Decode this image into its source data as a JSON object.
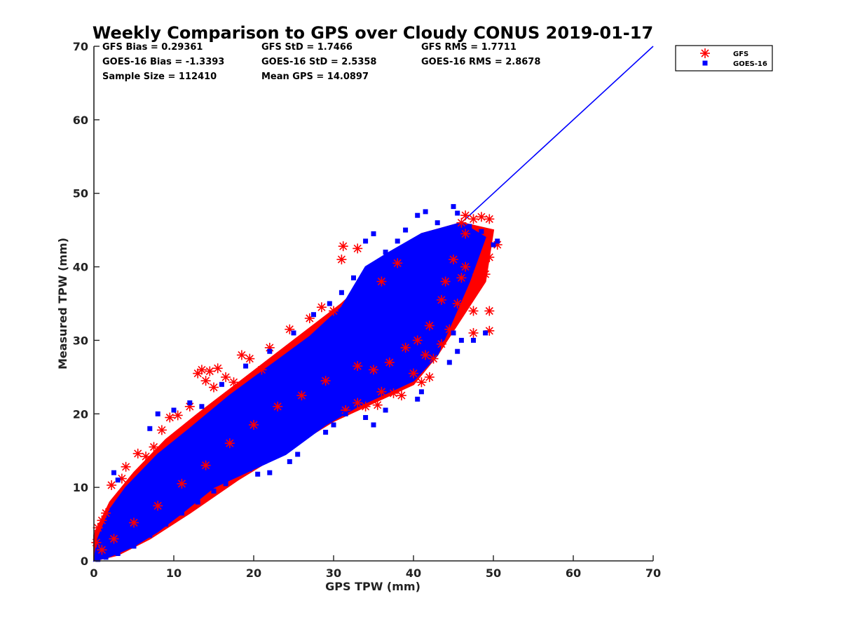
{
  "chart_data": {
    "type": "scatter",
    "title": "Weekly Comparison to GPS over Cloudy CONUS 2019-01-17",
    "xlabel": "GPS TPW (mm)",
    "ylabel": "Measured TPW (mm)",
    "xlim": [
      0,
      70
    ],
    "ylim": [
      0,
      70
    ],
    "xticks": [
      0,
      10,
      20,
      30,
      40,
      50,
      60,
      70
    ],
    "yticks": [
      0,
      10,
      20,
      30,
      40,
      50,
      60,
      70
    ],
    "grid": false,
    "legend_position": "outside top-right",
    "stats": {
      "gfs_bias": "GFS Bias = 0.29361",
      "goes_bias": "GOES-16 Bias = -1.3393",
      "sample_size": "Sample Size = 112410",
      "gfs_std": "GFS StD = 1.7466",
      "goes_std": "GOES-16 StD = 2.5358",
      "mean_gps": "Mean GPS = 14.0897",
      "gfs_rms": "GFS RMS = 1.7711",
      "goes_rms": "GOES-16 RMS = 2.8678"
    },
    "reference_line": {
      "name": "1:1 line",
      "color": "#0000ff",
      "x": [
        0,
        70
      ],
      "y": [
        0,
        70
      ]
    },
    "series": [
      {
        "name": "GFS",
        "marker": "asterisk",
        "color": "#ff0000",
        "points": [
          [
            0.3,
            2.5
          ],
          [
            0.5,
            4.5
          ],
          [
            1.0,
            5.5
          ],
          [
            1.5,
            6.5
          ],
          [
            2.2,
            10.3
          ],
          [
            3.5,
            11.2
          ],
          [
            4.0,
            12.8
          ],
          [
            5.5,
            14.6
          ],
          [
            6.5,
            14.2
          ],
          [
            7.5,
            15.5
          ],
          [
            8.5,
            17.8
          ],
          [
            9.5,
            19.5
          ],
          [
            10.5,
            19.8
          ],
          [
            12.0,
            21.0
          ],
          [
            13.0,
            25.5
          ],
          [
            13.5,
            26.0
          ],
          [
            14.0,
            24.5
          ],
          [
            14.5,
            25.8
          ],
          [
            15.0,
            23.6
          ],
          [
            15.5,
            26.2
          ],
          [
            16.5,
            25.0
          ],
          [
            17.5,
            24.3
          ],
          [
            18.5,
            28.0
          ],
          [
            19.5,
            27.5
          ],
          [
            21.0,
            26.0
          ],
          [
            22.0,
            29.0
          ],
          [
            24.5,
            31.5
          ],
          [
            27.0,
            33.0
          ],
          [
            28.5,
            34.5
          ],
          [
            30.0,
            34.0
          ],
          [
            31.2,
            42.8
          ],
          [
            31.0,
            41.0
          ],
          [
            33.0,
            42.5
          ],
          [
            36.0,
            38.0
          ],
          [
            38.0,
            40.5
          ],
          [
            41.5,
            28.0
          ],
          [
            42.0,
            25.0
          ],
          [
            41.0,
            24.3
          ],
          [
            38.5,
            22.5
          ],
          [
            36.0,
            23.0
          ],
          [
            34.0,
            21.0
          ],
          [
            31.5,
            20.5
          ],
          [
            33.0,
            21.5
          ],
          [
            35.5,
            21.2
          ],
          [
            37.5,
            22.8
          ],
          [
            40.0,
            25.5
          ],
          [
            42.5,
            27.5
          ],
          [
            43.5,
            29.5
          ],
          [
            44.5,
            31.5
          ],
          [
            45.5,
            35.0
          ],
          [
            46.0,
            38.5
          ],
          [
            46.5,
            40.0
          ],
          [
            47.5,
            37.0
          ],
          [
            48.0,
            39.0
          ],
          [
            49.0,
            39.0
          ],
          [
            47.5,
            34.0
          ],
          [
            49.5,
            34.0
          ],
          [
            47.5,
            31.0
          ],
          [
            49.5,
            31.3
          ],
          [
            49.5,
            41.3
          ],
          [
            50.5,
            43.0
          ],
          [
            46.0,
            46.0
          ],
          [
            46.5,
            47.0
          ],
          [
            47.5,
            46.5
          ],
          [
            48.5,
            46.8
          ],
          [
            49.5,
            46.5
          ],
          [
            46.5,
            44.5
          ],
          [
            45.0,
            41.0
          ],
          [
            44.0,
            38.0
          ],
          [
            43.5,
            35.5
          ],
          [
            42.0,
            32.0
          ],
          [
            40.5,
            30.0
          ],
          [
            39.0,
            29.0
          ],
          [
            37.0,
            27.0
          ],
          [
            35.0,
            26.0
          ],
          [
            33.0,
            26.5
          ],
          [
            29.0,
            24.5
          ],
          [
            26.0,
            22.5
          ],
          [
            23.0,
            21.0
          ],
          [
            20.0,
            18.5
          ],
          [
            17.0,
            16.0
          ],
          [
            14.0,
            13.0
          ],
          [
            11.0,
            10.5
          ],
          [
            8.0,
            7.5
          ],
          [
            5.0,
            5.2
          ],
          [
            2.5,
            3.0
          ],
          [
            1.0,
            1.5
          ]
        ]
      },
      {
        "name": "GOES-16",
        "marker": "square",
        "color": "#0000ff",
        "points": [
          [
            2.5,
            12.0
          ],
          [
            3.0,
            11.0
          ],
          [
            5.0,
            10.5
          ],
          [
            7.0,
            18.0
          ],
          [
            8.0,
            20.0
          ],
          [
            10.0,
            20.5
          ],
          [
            12.0,
            21.5
          ],
          [
            13.5,
            21.0
          ],
          [
            16.0,
            24.0
          ],
          [
            19.0,
            26.5
          ],
          [
            22.0,
            28.5
          ],
          [
            25.0,
            31.0
          ],
          [
            27.5,
            33.5
          ],
          [
            29.5,
            35.0
          ],
          [
            31.0,
            36.5
          ],
          [
            32.5,
            38.5
          ],
          [
            34.0,
            43.5
          ],
          [
            35.0,
            44.5
          ],
          [
            36.5,
            42.0
          ],
          [
            38.0,
            43.5
          ],
          [
            39.0,
            45.0
          ],
          [
            40.5,
            47.0
          ],
          [
            41.5,
            47.5
          ],
          [
            43.0,
            46.0
          ],
          [
            45.0,
            48.2
          ],
          [
            45.5,
            47.3
          ],
          [
            47.0,
            45.5
          ],
          [
            48.5,
            44.8
          ],
          [
            50.0,
            43.0
          ],
          [
            50.5,
            43.5
          ],
          [
            44.0,
            34.5
          ],
          [
            45.0,
            31.0
          ],
          [
            45.5,
            28.5
          ],
          [
            46.0,
            30.0
          ],
          [
            47.5,
            30.0
          ],
          [
            49.0,
            31.0
          ],
          [
            44.5,
            27.0
          ],
          [
            41.0,
            23.0
          ],
          [
            40.5,
            22.0
          ],
          [
            36.5,
            20.5
          ],
          [
            34.0,
            19.5
          ],
          [
            35.0,
            18.5
          ],
          [
            31.5,
            20.0
          ],
          [
            30.0,
            18.5
          ],
          [
            29.0,
            17.5
          ],
          [
            25.5,
            14.5
          ],
          [
            24.5,
            13.5
          ],
          [
            22.0,
            12.0
          ],
          [
            20.5,
            11.8
          ],
          [
            19.5,
            12.5
          ],
          [
            16.5,
            10.5
          ],
          [
            15.0,
            9.5
          ],
          [
            13.0,
            8.0
          ],
          [
            11.0,
            6.5
          ],
          [
            9.0,
            5.0
          ],
          [
            7.0,
            3.5
          ],
          [
            5.0,
            2.0
          ],
          [
            3.0,
            1.0
          ],
          [
            1.5,
            0.5
          ],
          [
            0.5,
            0.2
          ]
        ]
      }
    ]
  },
  "render": {
    "note_band_series": "GOES-16"
  }
}
